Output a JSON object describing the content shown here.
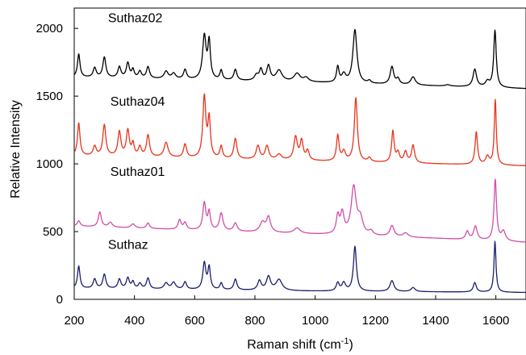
{
  "chart_data": {
    "type": "line",
    "title": "",
    "xlabel": "Raman shift (cm",
    "xlabel_sup": "-1",
    "xlabel_close": ")",
    "ylabel": "Relative Intensity",
    "xlim": [
      200,
      1700
    ],
    "ylim": [
      0,
      2150
    ],
    "xticks": [
      200,
      400,
      600,
      800,
      1000,
      1200,
      1400,
      1600
    ],
    "yticks": [
      0,
      500,
      1000,
      1500,
      2000
    ],
    "grid": false,
    "series": [
      {
        "name": "Suthaz02",
        "color": "#000000",
        "label_at": [
          312,
          2045
        ],
        "baseline": [
          [
            200,
            1640
          ],
          [
            600,
            1620
          ],
          [
            1000,
            1600
          ],
          [
            1400,
            1575
          ],
          [
            1700,
            1555
          ]
        ],
        "peaks": [
          [
            215,
            170,
            5
          ],
          [
            268,
            70,
            6
          ],
          [
            300,
            150,
            6
          ],
          [
            350,
            80,
            6
          ],
          [
            378,
            110,
            6
          ],
          [
            395,
            60,
            5
          ],
          [
            418,
            50,
            6
          ],
          [
            445,
            85,
            6
          ],
          [
            505,
            55,
            8
          ],
          [
            530,
            40,
            8
          ],
          [
            568,
            70,
            6
          ],
          [
            632,
            320,
            7
          ],
          [
            648,
            270,
            5
          ],
          [
            688,
            70,
            5
          ],
          [
            735,
            80,
            6
          ],
          [
            805,
            40,
            8
          ],
          [
            820,
            80,
            6
          ],
          [
            845,
            110,
            7
          ],
          [
            880,
            80,
            12
          ],
          [
            940,
            60,
            12
          ],
          [
            970,
            30,
            10
          ],
          [
            1075,
            115,
            5
          ],
          [
            1095,
            60,
            8
          ],
          [
            1132,
            395,
            8
          ],
          [
            1180,
            20,
            6
          ],
          [
            1255,
            130,
            7
          ],
          [
            1275,
            40,
            6
          ],
          [
            1325,
            60,
            9
          ],
          [
            1440,
            10,
            10
          ],
          [
            1530,
            130,
            7
          ],
          [
            1572,
            40,
            8
          ],
          [
            1597,
            420,
            5
          ]
        ]
      },
      {
        "name": "Suthaz04",
        "color": "#e8341c",
        "label_at": [
          320,
          1430
        ],
        "baseline": [
          [
            200,
            1060
          ],
          [
            600,
            1040
          ],
          [
            1000,
            1020
          ],
          [
            1400,
            1000
          ],
          [
            1700,
            985
          ]
        ],
        "peaks": [
          [
            215,
            240,
            5
          ],
          [
            268,
            70,
            6
          ],
          [
            300,
            230,
            6
          ],
          [
            350,
            180,
            6
          ],
          [
            378,
            190,
            6
          ],
          [
            395,
            90,
            5
          ],
          [
            418,
            70,
            6
          ],
          [
            445,
            160,
            6
          ],
          [
            505,
            110,
            8
          ],
          [
            568,
            100,
            6
          ],
          [
            632,
            450,
            6
          ],
          [
            648,
            280,
            5
          ],
          [
            688,
            90,
            5
          ],
          [
            735,
            150,
            6
          ],
          [
            810,
            100,
            7
          ],
          [
            840,
            100,
            7
          ],
          [
            880,
            40,
            10
          ],
          [
            935,
            170,
            7
          ],
          [
            955,
            140,
            6
          ],
          [
            975,
            70,
            6
          ],
          [
            1075,
            190,
            5
          ],
          [
            1095,
            70,
            7
          ],
          [
            1135,
            470,
            6
          ],
          [
            1180,
            30,
            6
          ],
          [
            1258,
            230,
            5
          ],
          [
            1275,
            70,
            6
          ],
          [
            1300,
            80,
            6
          ],
          [
            1325,
            130,
            6
          ],
          [
            1535,
            240,
            5
          ],
          [
            1572,
            60,
            7
          ],
          [
            1598,
            480,
            4
          ]
        ]
      },
      {
        "name": "Suthaz01",
        "color": "#d14ea8",
        "label_at": [
          320,
          912
        ],
        "baseline": [
          [
            200,
            540
          ],
          [
            600,
            510
          ],
          [
            1000,
            480
          ],
          [
            1400,
            450
          ],
          [
            1700,
            420
          ]
        ],
        "peaks": [
          [
            215,
            40,
            6
          ],
          [
            285,
            110,
            6
          ],
          [
            320,
            35,
            8
          ],
          [
            395,
            30,
            8
          ],
          [
            445,
            40,
            6
          ],
          [
            550,
            70,
            6
          ],
          [
            568,
            50,
            6
          ],
          [
            632,
            200,
            6
          ],
          [
            648,
            130,
            5
          ],
          [
            688,
            130,
            7
          ],
          [
            735,
            60,
            7
          ],
          [
            825,
            70,
            10
          ],
          [
            845,
            110,
            8
          ],
          [
            940,
            40,
            12
          ],
          [
            1075,
            130,
            6
          ],
          [
            1090,
            150,
            7
          ],
          [
            1128,
            350,
            10
          ],
          [
            1150,
            110,
            10
          ],
          [
            1185,
            30,
            8
          ],
          [
            1255,
            80,
            8
          ],
          [
            1300,
            30,
            10
          ],
          [
            1505,
            60,
            6
          ],
          [
            1532,
            100,
            7
          ],
          [
            1598,
            450,
            5
          ],
          [
            1625,
            70,
            8
          ]
        ]
      },
      {
        "name": "Suthaz",
        "color": "#1a1f6e",
        "label_at": [
          312,
          372
        ],
        "baseline": [
          [
            200,
            80
          ],
          [
            600,
            70
          ],
          [
            1000,
            60
          ],
          [
            1400,
            55
          ],
          [
            1700,
            50
          ]
        ],
        "peaks": [
          [
            215,
            165,
            5
          ],
          [
            268,
            70,
            6
          ],
          [
            300,
            105,
            6
          ],
          [
            350,
            70,
            6
          ],
          [
            378,
            80,
            6
          ],
          [
            395,
            50,
            5
          ],
          [
            418,
            40,
            6
          ],
          [
            445,
            80,
            6
          ],
          [
            505,
            45,
            8
          ],
          [
            530,
            50,
            8
          ],
          [
            568,
            55,
            6
          ],
          [
            632,
            195,
            6
          ],
          [
            648,
            160,
            5
          ],
          [
            688,
            50,
            5
          ],
          [
            735,
            80,
            6
          ],
          [
            815,
            70,
            7
          ],
          [
            845,
            100,
            8
          ],
          [
            880,
            80,
            12
          ],
          [
            1075,
            60,
            6
          ],
          [
            1095,
            60,
            7
          ],
          [
            1132,
            330,
            6
          ],
          [
            1255,
            80,
            8
          ],
          [
            1325,
            30,
            8
          ],
          [
            1530,
            70,
            6
          ],
          [
            1597,
            375,
            4
          ]
        ]
      }
    ]
  }
}
